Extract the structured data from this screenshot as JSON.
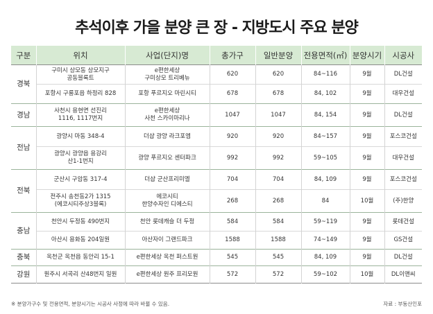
{
  "title": "추석이후 가을 분양 큰 장 - 지방도시 주요 분양",
  "headers": [
    "구분",
    "위치",
    "사업(단지)명",
    "총가구",
    "일반분양",
    "전용면적(㎡)",
    "분양시기",
    "시공사"
  ],
  "rows": [
    {
      "region": "경북",
      "location": "구미시 상모동 상모지구\n공동블록트",
      "name": "e편한세상\n구미상모 트리베뉴",
      "total": "620",
      "general": "620",
      "area": "84~116",
      "period": "9월",
      "builder": "DL건설"
    },
    {
      "region": "",
      "location": "포항시 구룡포읍 하정리 828",
      "name": "포항 푸르지오 마린시티",
      "total": "678",
      "general": "678",
      "area": "84, 102",
      "period": "9월",
      "builder": "대우건설"
    },
    {
      "region": "경남",
      "location": "사천시 용현면 선진리\n1116, 1117번지",
      "name": "e편한세상\n사천 스카이마리나",
      "total": "1047",
      "general": "1047",
      "area": "84, 154",
      "period": "9월",
      "builder": "DL건설"
    },
    {
      "region": "전남",
      "location": "광양시 마동 348-4",
      "name": "더샵 광양 라크포엠",
      "total": "920",
      "general": "920",
      "area": "84~157",
      "period": "9월",
      "builder": "포스코건설"
    },
    {
      "region": "",
      "location": "광양시 광양읍 용강리\n산1-1번지",
      "name": "광양 푸르지오 센터파크",
      "total": "992",
      "general": "992",
      "area": "59~105",
      "period": "9월",
      "builder": "대우건설"
    },
    {
      "region": "전북",
      "location": "군산시 구암동 317-4",
      "name": "더샵 군산프리미엘",
      "total": "704",
      "general": "704",
      "area": "84, 109",
      "period": "9월",
      "builder": "포스코건설"
    },
    {
      "region": "",
      "location": "전주시 송천동2가 1315\n(에코시티주상3블록)",
      "name": "에코시티\n한양수자인 디에스티",
      "total": "268",
      "general": "268",
      "area": "84",
      "period": "10월",
      "builder": "(주)한양"
    },
    {
      "region": "충남",
      "location": "천안시 두정동 490번지",
      "name": "천안 롯데캐슬 더 두정",
      "total": "584",
      "general": "584",
      "area": "59~119",
      "period": "9월",
      "builder": "롯데건설"
    },
    {
      "region": "",
      "location": "아산시 용화동 204일원",
      "name": "아산자이 그랜드파크",
      "total": "1588",
      "general": "1588",
      "area": "74~149",
      "period": "9월",
      "builder": "GS건설"
    },
    {
      "region": "충북",
      "location": "옥천군 옥천읍 동안리 15-1",
      "name": "e편한세상 옥천 퍼스트원",
      "total": "545",
      "general": "545",
      "area": "84, 109",
      "period": "9월",
      "builder": "DL건설"
    },
    {
      "region": "강원",
      "location": "원주시 서곡리 산48번지 일원",
      "name": "e편한세상 원주 프리모원",
      "total": "572",
      "general": "572",
      "area": "59~102",
      "period": "10월",
      "builder": "DL이앤씨"
    }
  ],
  "footnote": "※ 분양가구수 및 전용면적, 분양시기는 시공사 사정에 따라 바뀔 수 있음.",
  "source": "자료 : 부동산인포"
}
